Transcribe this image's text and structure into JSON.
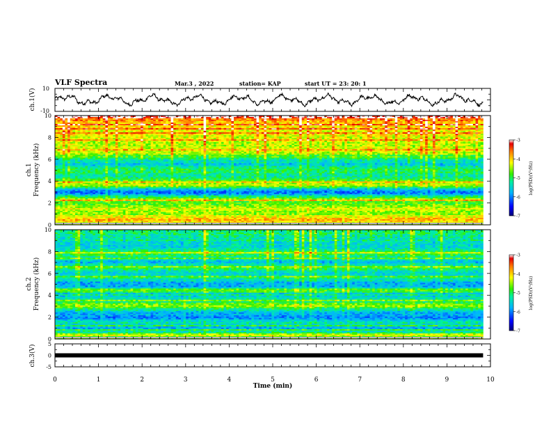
{
  "header": {
    "title": "VLF Spectra",
    "date": "Mar.3  , 2022",
    "station": "station= KAP",
    "start_time": "start  UT  =   23: 20: 1"
  },
  "colormap": {
    "stops": [
      "#0000c8",
      "#0064ff",
      "#00c8ff",
      "#00e6b4",
      "#28f028",
      "#b4f000",
      "#ffe600",
      "#ff9600",
      "#f01e00",
      "#ffffff"
    ]
  },
  "chart_data": [
    {
      "type": "line",
      "id": "ch1-waveform",
      "ylabel": "ch.1(V)",
      "ylim": [
        -10,
        10
      ],
      "ticks": [
        "-10",
        "10"
      ],
      "xlim": [
        0,
        10
      ],
      "x_end": 9.83,
      "summary": "noisy oscillating waveform between about -5 and +5 V"
    },
    {
      "type": "heatmap",
      "id": "ch1-spectrogram",
      "ylabel_line1": "ch.1",
      "ylabel_line2": "Frequency (kHz)",
      "ylim": [
        0,
        10
      ],
      "yticks": [
        "0",
        "2",
        "4",
        "6",
        "8",
        "10"
      ],
      "xlim": [
        0,
        10
      ],
      "x_end": 9.83,
      "colorbar": {
        "label": "log(PSD)(V²/Hz)",
        "range": [
          -7,
          -3
        ],
        "ticks": [
          "-3",
          "-4",
          "-5",
          "-6",
          "-7"
        ]
      },
      "level_profile": [
        [
          0,
          -4.4
        ],
        [
          0.5,
          -3.9
        ],
        [
          1,
          -4.5
        ],
        [
          1.5,
          -4.3
        ],
        [
          2,
          -4.8
        ],
        [
          2.3,
          -4.4
        ],
        [
          2.6,
          -5.2
        ],
        [
          3,
          -6.2
        ],
        [
          3.3,
          -5.5
        ],
        [
          3.6,
          -4.3
        ],
        [
          4,
          -4.7
        ],
        [
          4.5,
          -5.3
        ],
        [
          5,
          -5.0
        ],
        [
          5.5,
          -5.6
        ],
        [
          6,
          -5.2
        ],
        [
          6.5,
          -4.5
        ],
        [
          7,
          -4.4
        ],
        [
          8,
          -4.3
        ],
        [
          9,
          -4.0
        ],
        [
          10,
          -3.6
        ]
      ]
    },
    {
      "type": "heatmap",
      "id": "ch2-spectrogram",
      "ylabel_line1": "ch.2",
      "ylabel_line2": "Frequency (kHz)",
      "ylim": [
        0,
        10
      ],
      "yticks": [
        "0",
        "2",
        "4",
        "6",
        "8",
        "10"
      ],
      "xlim": [
        0,
        10
      ],
      "x_end": 9.83,
      "colorbar": {
        "label": "log(PSD)(V²/Hz)",
        "range": [
          -7,
          -3
        ],
        "ticks": [
          "-3",
          "-4",
          "-5",
          "-6",
          "-7"
        ]
      },
      "level_profile": [
        [
          0,
          -4.5
        ],
        [
          0.5,
          -5.1
        ],
        [
          1,
          -5.7
        ],
        [
          1.5,
          -5.3
        ],
        [
          2,
          -6.0
        ],
        [
          2.5,
          -5.6
        ],
        [
          3,
          -4.6
        ],
        [
          3.5,
          -5.1
        ],
        [
          4,
          -5.8
        ],
        [
          4.5,
          -5.3
        ],
        [
          5,
          -5.9
        ],
        [
          5.5,
          -5.2
        ],
        [
          6,
          -5.6
        ],
        [
          6.5,
          -5.0
        ],
        [
          7,
          -5.7
        ],
        [
          7.5,
          -5.2
        ],
        [
          8,
          -4.9
        ],
        [
          8.5,
          -5.6
        ],
        [
          9,
          -5.3
        ],
        [
          10,
          -5.0
        ]
      ]
    },
    {
      "type": "line",
      "id": "ch3-signal",
      "ylabel": "ch.3(V)",
      "ylim": [
        -5,
        5
      ],
      "ticks": [
        "-5",
        "0",
        "5"
      ],
      "xlim": [
        0,
        10
      ],
      "x_end": 9.83,
      "value": 0,
      "xlabel": "Time  (min)",
      "xticks": [
        "0",
        "1",
        "2",
        "3",
        "4",
        "5",
        "6",
        "7",
        "8",
        "9",
        "10"
      ]
    }
  ]
}
